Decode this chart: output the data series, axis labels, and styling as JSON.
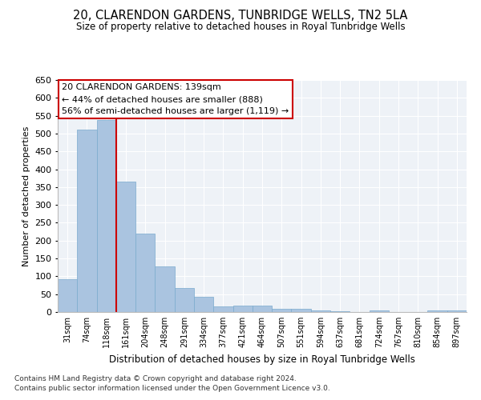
{
  "title": "20, CLARENDON GARDENS, TUNBRIDGE WELLS, TN2 5LA",
  "subtitle": "Size of property relative to detached houses in Royal Tunbridge Wells",
  "xlabel": "Distribution of detached houses by size in Royal Tunbridge Wells",
  "ylabel": "Number of detached properties",
  "footnote1": "Contains HM Land Registry data © Crown copyright and database right 2024.",
  "footnote2": "Contains public sector information licensed under the Open Government Licence v3.0.",
  "categories": [
    "31sqm",
    "74sqm",
    "118sqm",
    "161sqm",
    "204sqm",
    "248sqm",
    "291sqm",
    "334sqm",
    "377sqm",
    "421sqm",
    "464sqm",
    "507sqm",
    "551sqm",
    "594sqm",
    "637sqm",
    "681sqm",
    "724sqm",
    "767sqm",
    "810sqm",
    "854sqm",
    "897sqm"
  ],
  "values": [
    93,
    510,
    537,
    365,
    220,
    127,
    68,
    42,
    15,
    17,
    18,
    10,
    10,
    5,
    3,
    1,
    4,
    1,
    0,
    4,
    5
  ],
  "bar_color": "#aac4e0",
  "bar_edge_color": "#7aaace",
  "vline_color": "#cc0000",
  "vline_pos": 2.5,
  "annotation_box_text": "20 CLARENDON GARDENS: 139sqm\n← 44% of detached houses are smaller (888)\n56% of semi-detached houses are larger (1,119) →",
  "annotation_box_color": "#cc0000",
  "bg_color": "#eef2f7",
  "ylim": [
    0,
    650
  ],
  "yticks": [
    0,
    50,
    100,
    150,
    200,
    250,
    300,
    350,
    400,
    450,
    500,
    550,
    600,
    650
  ]
}
